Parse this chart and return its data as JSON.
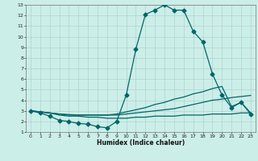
{
  "xlabel": "Humidex (Indice chaleur)",
  "bg_color": "#cceee8",
  "grid_color": "#aacccc",
  "line_color": "#006666",
  "xlim": [
    -0.5,
    23.5
  ],
  "ylim": [
    1,
    13
  ],
  "xticks": [
    0,
    1,
    2,
    3,
    4,
    5,
    6,
    7,
    8,
    9,
    10,
    11,
    12,
    13,
    14,
    15,
    16,
    17,
    18,
    19,
    20,
    21,
    22,
    23
  ],
  "yticks": [
    1,
    2,
    3,
    4,
    5,
    6,
    7,
    8,
    9,
    10,
    11,
    12,
    13
  ],
  "line1_x": [
    0,
    1,
    2,
    3,
    4,
    5,
    6,
    7,
    8,
    9,
    10,
    11,
    12,
    13,
    14,
    15,
    16,
    17,
    18,
    19,
    20,
    21,
    22,
    23
  ],
  "line1_y": [
    3.0,
    2.8,
    2.5,
    2.1,
    2.0,
    1.8,
    1.75,
    1.5,
    1.4,
    2.0,
    4.5,
    8.8,
    12.1,
    12.5,
    13.0,
    12.5,
    12.5,
    10.5,
    9.5,
    6.5,
    4.5,
    3.3,
    3.8,
    2.7
  ],
  "line2_x": [
    0,
    1,
    2,
    3,
    4,
    5,
    6,
    7,
    8,
    9,
    10,
    11,
    12,
    13,
    14,
    15,
    16,
    17,
    18,
    19,
    20,
    21,
    22,
    23
  ],
  "line2_y": [
    3.0,
    2.9,
    2.8,
    2.7,
    2.65,
    2.6,
    2.6,
    2.6,
    2.6,
    2.7,
    2.9,
    3.1,
    3.3,
    3.6,
    3.8,
    4.1,
    4.3,
    4.6,
    4.8,
    5.1,
    5.3,
    3.4,
    3.8,
    2.8
  ],
  "line3_x": [
    0,
    1,
    2,
    3,
    4,
    5,
    6,
    7,
    8,
    9,
    10,
    11,
    12,
    13,
    14,
    15,
    16,
    17,
    18,
    19,
    20,
    21,
    22,
    23
  ],
  "line3_y": [
    3.0,
    2.9,
    2.8,
    2.7,
    2.6,
    2.6,
    2.6,
    2.6,
    2.6,
    2.6,
    2.7,
    2.8,
    2.9,
    3.0,
    3.1,
    3.2,
    3.4,
    3.6,
    3.8,
    4.0,
    4.1,
    4.25,
    4.35,
    4.45
  ],
  "line4_x": [
    0,
    1,
    2,
    3,
    4,
    5,
    6,
    7,
    8,
    9,
    10,
    11,
    12,
    13,
    14,
    15,
    16,
    17,
    18,
    19,
    20,
    21,
    22,
    23
  ],
  "line4_y": [
    3.0,
    2.9,
    2.8,
    2.6,
    2.5,
    2.5,
    2.4,
    2.4,
    2.3,
    2.3,
    2.3,
    2.4,
    2.4,
    2.5,
    2.5,
    2.5,
    2.6,
    2.6,
    2.6,
    2.7,
    2.7,
    2.7,
    2.8,
    2.8
  ],
  "marker_size": 2.5,
  "line_width": 0.9
}
